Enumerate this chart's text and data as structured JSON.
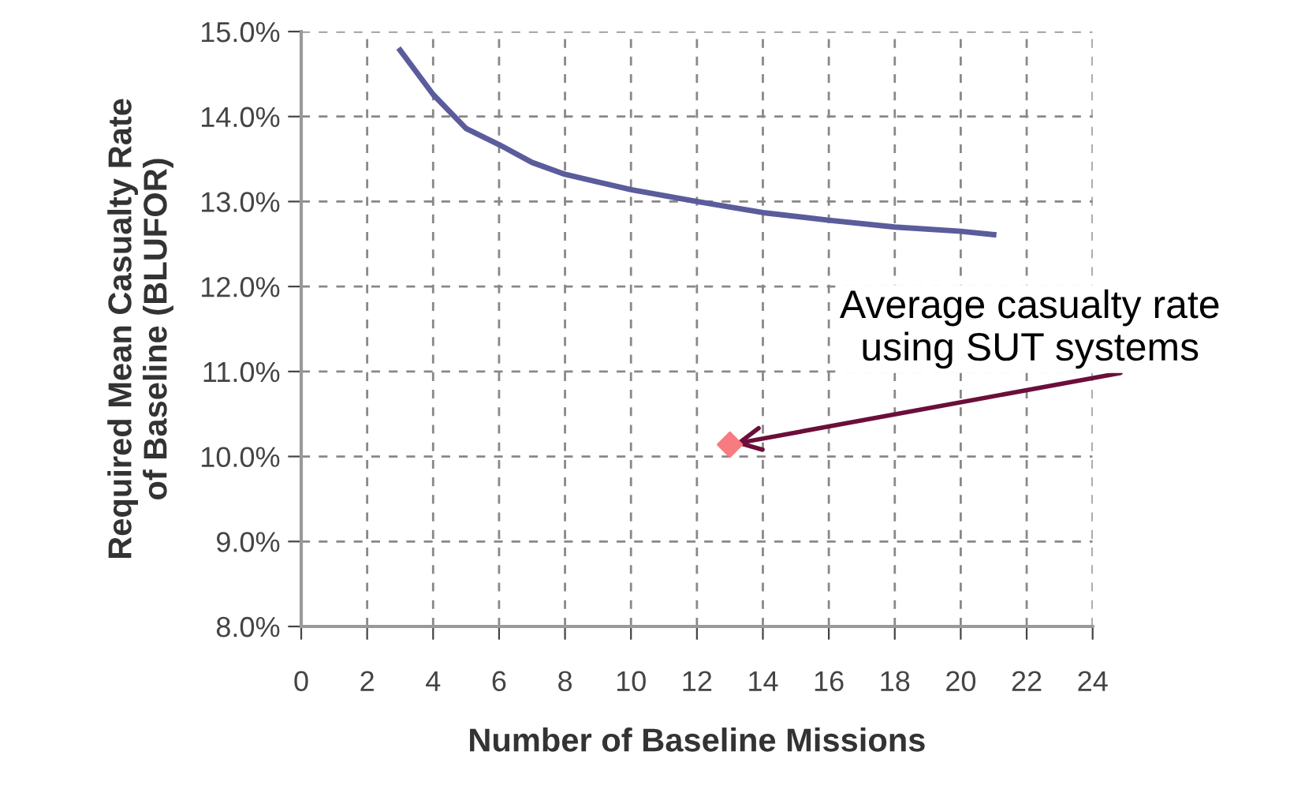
{
  "chart_data": {
    "type": "line",
    "xlabel": "Number of Baseline Missions",
    "ylabel": "Required Mean Casualty Rate\nof Baseline (BLUFOR)",
    "series": [
      {
        "color": "#5b5c9c",
        "x": [
          3,
          4,
          5,
          6,
          7,
          8,
          10,
          12,
          14,
          16,
          18,
          20,
          21
        ],
        "values": [
          14.78,
          14.26,
          13.86,
          13.67,
          13.46,
          13.32,
          13.14,
          13.0,
          12.87,
          12.78,
          12.7,
          12.65,
          12.61
        ]
      },
      {
        "type": "scatter",
        "color": "#f77b7f",
        "marker": "diamond",
        "x": [
          13
        ],
        "values": [
          10.14
        ]
      }
    ],
    "xlim": [
      0,
      24
    ],
    "xticks": [
      0,
      2,
      4,
      6,
      8,
      10,
      12,
      14,
      16,
      18,
      20,
      22,
      24
    ],
    "ylim": [
      8,
      15
    ],
    "yticks": [
      {
        "value": 8,
        "label": "8.0%"
      },
      {
        "value": 9,
        "label": "9.0%"
      },
      {
        "value": 10,
        "label": "10.0%"
      },
      {
        "value": 11,
        "label": "11.0%"
      },
      {
        "value": 12,
        "label": "12.0%"
      },
      {
        "value": 13,
        "label": "13.0%"
      },
      {
        "value": 14,
        "label": "14.0%"
      },
      {
        "value": 15,
        "label": "15.0%"
      }
    ],
    "grid": true,
    "line_style": "solid",
    "annotations": [
      {
        "text": "Average casualty rate\nusing SUT systems",
        "x": 13,
        "y": 10.14
      }
    ]
  }
}
